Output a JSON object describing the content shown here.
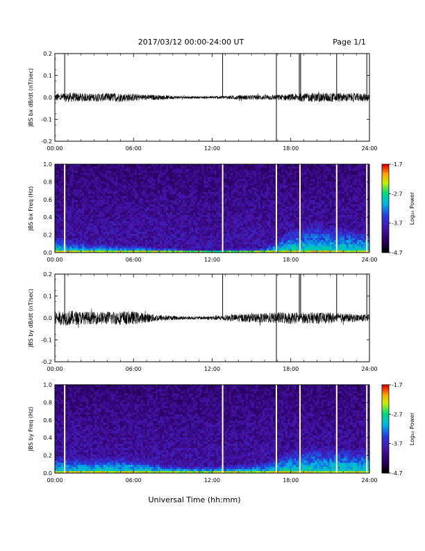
{
  "header": {
    "title": "2017/03/12  00:00-24:00 UT",
    "page": "Page 1/1"
  },
  "xaxis_label": "Universal Time (hh:mm)",
  "chart_data": [
    {
      "type": "line",
      "ylabel": "JBS bx dB/dt (nT/sec)",
      "xlim": [
        0,
        24
      ],
      "ylim": [
        -0.2,
        0.2
      ],
      "xticks": [
        "00:00",
        "06:00",
        "12:00",
        "18:00",
        "24:00"
      ],
      "yticks": [
        "0.2",
        "0.1",
        "0.0",
        "-0.1",
        "-0.2"
      ],
      "noise_envelope": {
        "x": [
          0,
          1,
          2,
          3,
          4,
          5,
          6,
          7,
          8,
          9,
          10,
          11,
          12,
          13,
          14,
          15,
          16,
          17,
          18,
          19,
          20,
          21,
          22,
          23,
          24
        ],
        "amplitude": [
          0.018,
          0.022,
          0.02,
          0.018,
          0.02,
          0.02,
          0.017,
          0.013,
          0.011,
          0.008,
          0.006,
          0.005,
          0.006,
          0.008,
          0.01,
          0.011,
          0.012,
          0.013,
          0.016,
          0.019,
          0.021,
          0.022,
          0.02,
          0.019,
          0.018
        ]
      },
      "spikes": [
        {
          "x": 0.75,
          "min": 0.0,
          "max": 0.2
        },
        {
          "x": 12.8,
          "min": 0.0,
          "max": 0.2
        },
        {
          "x": 16.9,
          "min": -0.2,
          "max": 0.2
        },
        {
          "x": 18.65,
          "min": 0.0,
          "max": 0.2
        },
        {
          "x": 18.75,
          "min": 0.0,
          "max": 0.2
        },
        {
          "x": 21.5,
          "min": 0.0,
          "max": 0.2
        },
        {
          "x": 23.8,
          "min": 0.0,
          "max": 0.2
        }
      ]
    },
    {
      "type": "heatmap",
      "ylabel": "JBS bx Freq (Hz)",
      "colorbar_label": "Log₁₀ Power",
      "colorbar_ticks": [
        "-1.7",
        "-2.7",
        "-3.7",
        "-4.7"
      ],
      "zlim": [
        -4.7,
        -1.7
      ],
      "xlim": [
        0,
        24
      ],
      "ylim": [
        0.0,
        1.0
      ],
      "xticks": [
        "00:00",
        "06:00",
        "12:00",
        "18:00",
        "24:00"
      ],
      "yticks": [
        "1.0",
        "0.8",
        "0.6",
        "0.4",
        "0.2",
        "0.0"
      ],
      "gaps_x": [
        0.75,
        12.8,
        16.9,
        18.7,
        21.5,
        23.8
      ],
      "low_freq_activity": {
        "x": [
          0,
          2,
          4,
          6,
          8,
          10,
          12,
          14,
          16,
          17,
          18,
          20,
          22,
          24
        ],
        "top_hz": [
          0.2,
          0.12,
          0.1,
          0.08,
          0.06,
          0.04,
          0.03,
          0.04,
          0.06,
          0.15,
          0.3,
          0.35,
          0.3,
          0.25
        ]
      }
    },
    {
      "type": "line",
      "ylabel": "JBS by dB/dt (nT/sec)",
      "xlim": [
        0,
        24
      ],
      "ylim": [
        -0.2,
        0.2
      ],
      "xticks": [
        "00:00",
        "06:00",
        "12:00",
        "18:00",
        "24:00"
      ],
      "yticks": [
        "0.2",
        "0.1",
        "0.0",
        "-0.1",
        "-0.2"
      ],
      "noise_envelope": {
        "x": [
          0,
          1,
          2,
          3,
          4,
          5,
          6,
          7,
          8,
          9,
          10,
          11,
          12,
          13,
          14,
          15,
          16,
          17,
          18,
          19,
          20,
          21,
          22,
          23,
          24
        ],
        "amplitude": [
          0.03,
          0.035,
          0.03,
          0.028,
          0.03,
          0.032,
          0.03,
          0.022,
          0.015,
          0.01,
          0.008,
          0.007,
          0.01,
          0.014,
          0.018,
          0.02,
          0.022,
          0.026,
          0.028,
          0.025,
          0.026,
          0.024,
          0.02,
          0.018,
          0.016
        ]
      },
      "spikes": [
        {
          "x": 0.75,
          "min": 0.0,
          "max": 0.2
        },
        {
          "x": 12.8,
          "min": 0.0,
          "max": 0.2
        },
        {
          "x": 16.9,
          "min": -0.2,
          "max": 0.2
        },
        {
          "x": 18.65,
          "min": 0.0,
          "max": 0.2
        },
        {
          "x": 18.75,
          "min": 0.0,
          "max": 0.2
        },
        {
          "x": 21.5,
          "min": 0.0,
          "max": 0.2
        },
        {
          "x": 23.8,
          "min": 0.0,
          "max": 0.2
        }
      ]
    },
    {
      "type": "heatmap",
      "ylabel": "JBS by Freq (Hz)",
      "colorbar_label": "Log₁₀ Power",
      "colorbar_ticks": [
        "-1.7",
        "-2.7",
        "-3.7",
        "-4.7"
      ],
      "zlim": [
        -4.7,
        -1.7
      ],
      "xlim": [
        0,
        24
      ],
      "ylim": [
        0.0,
        1.0
      ],
      "xticks": [
        "00:00",
        "06:00",
        "12:00",
        "18:00",
        "24:00"
      ],
      "yticks": [
        "1.0",
        "0.8",
        "0.6",
        "0.4",
        "0.2",
        "0.0"
      ],
      "gaps_x": [
        0.75,
        12.8,
        16.9,
        18.7,
        21.5,
        23.8
      ],
      "low_freq_activity": {
        "x": [
          0,
          2,
          4,
          6,
          8,
          10,
          12,
          14,
          16,
          17,
          18,
          20,
          22,
          24
        ],
        "top_hz": [
          0.22,
          0.18,
          0.2,
          0.18,
          0.12,
          0.08,
          0.08,
          0.1,
          0.12,
          0.18,
          0.28,
          0.32,
          0.3,
          0.28
        ]
      }
    }
  ]
}
